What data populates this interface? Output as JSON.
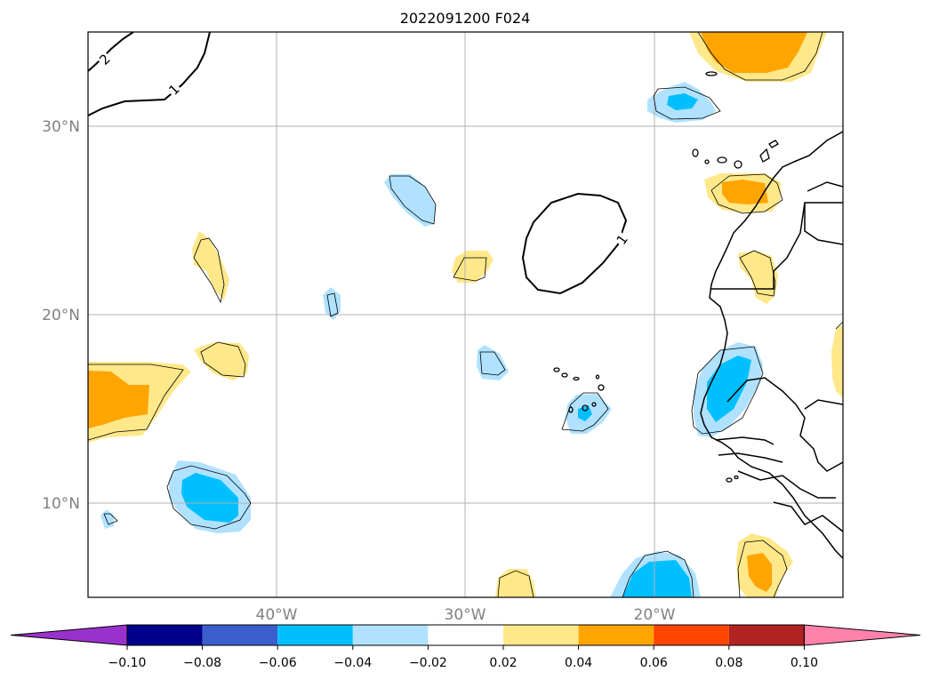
{
  "title": "2022091200 F024",
  "map": {
    "lon_range": [
      -50,
      -10
    ],
    "lat_range": [
      5,
      35
    ],
    "lat_labels": [
      "30°N",
      "20°N",
      "10°N"
    ],
    "lon_labels": [
      "40°W",
      "30°W",
      "20°W"
    ],
    "contour_labels": [
      "2",
      "1",
      "1"
    ]
  },
  "colorbar": {
    "labels": [
      "−0.10",
      "−0.08",
      "−0.06",
      "−0.04",
      "−0.02",
      "0.02",
      "0.04",
      "0.06",
      "0.08",
      "0.10"
    ],
    "colors": {
      "under": "#9932cc",
      "bins": [
        "#00008b",
        "#3a5fcd",
        "#00bfff",
        "#b0e2ff",
        "#ffffff",
        "#ffe88a",
        "#ffa500",
        "#ff4500",
        "#b22222"
      ],
      "over": "#ff82ab"
    }
  },
  "legend_colors": {
    "light_yellow": "#ffe88a",
    "orange": "#ffa500",
    "light_blue": "#b0e2ff",
    "deep_sky_blue": "#00bfff"
  }
}
